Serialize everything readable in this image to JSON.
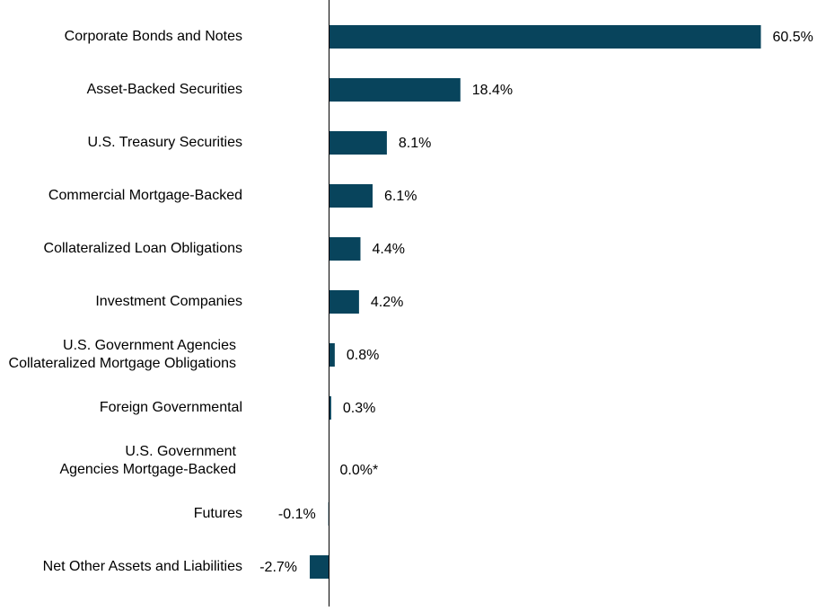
{
  "chart_data": {
    "type": "bar",
    "orientation": "horizontal",
    "categories": [
      [
        "Corporate Bonds and Notes"
      ],
      [
        "Asset-Backed Securities"
      ],
      [
        "U.S. Treasury Securities"
      ],
      [
        "Commercial Mortgage-Backed"
      ],
      [
        "Collateralized Loan Obligations"
      ],
      [
        "Investment Companies"
      ],
      [
        "U.S. Government Agencies",
        "Collateralized Mortgage Obligations"
      ],
      [
        "Foreign Governmental"
      ],
      [
        "U.S. Government",
        "Agencies Mortgage-Backed"
      ],
      [
        "Futures"
      ],
      [
        "Net Other Assets and Liabilities"
      ]
    ],
    "values": [
      60.5,
      18.4,
      8.1,
      6.1,
      4.4,
      4.2,
      0.8,
      0.3,
      0.0,
      -0.1,
      -2.7
    ],
    "value_labels": [
      "60.5%",
      "18.4%",
      "8.1%",
      "6.1%",
      "4.4%",
      "4.2%",
      "0.8%",
      "0.3%",
      "0.0%*",
      "-0.1%",
      "-2.7%"
    ],
    "title": "",
    "xlabel": "",
    "ylabel": "",
    "xlim": [
      -2.7,
      60.5
    ],
    "grid": false,
    "legend": "none",
    "bar_color": "#08445C",
    "axis_color": "#000000"
  }
}
